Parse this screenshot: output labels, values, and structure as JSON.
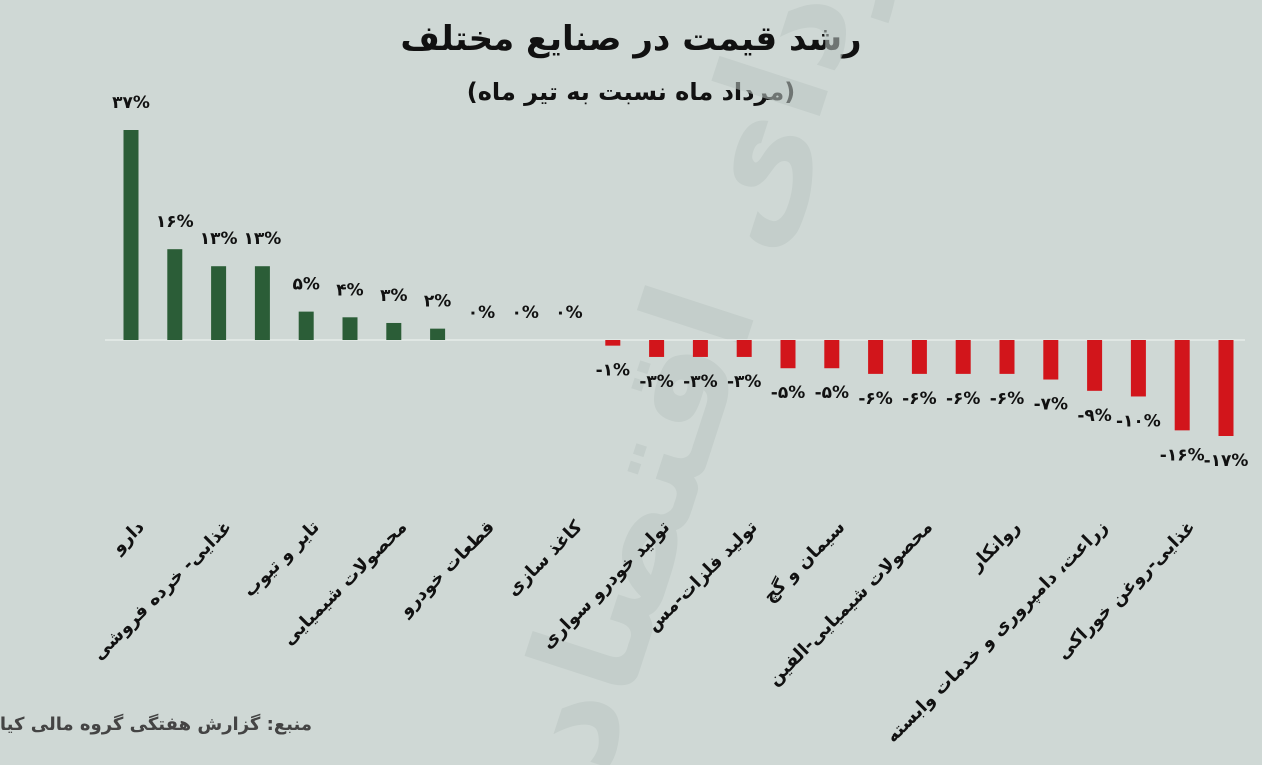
{
  "chart_data": {
    "type": "bar",
    "title": "رشد قیمت در صنایع مختلف",
    "subtitle": "(مرداد ماه نسبت به تیر ماه)",
    "source": "منبع: گزارش هفتگی گروه مالی کیان",
    "watermark": "فردای اقتصاد",
    "categories": [
      "دارو",
      null,
      "غذایی- خرده فروشی",
      null,
      "تایر و تیوب",
      null,
      "محصولات شیمیایی",
      null,
      "قطعات خودرو",
      null,
      "کاغذ سازی",
      null,
      "تولید خودرو سواری",
      null,
      "تولید فلزات-مس",
      null,
      "سیمان و گچ",
      null,
      "محصولات شیمیایی-الفین",
      null,
      "روانکار",
      null,
      "زراعت، دامپروری و خدمات وابسته",
      null,
      "غذایی-روغن خوراکی",
      null
    ],
    "values": [
      37,
      16,
      13,
      13,
      5,
      4,
      3,
      2,
      0,
      0,
      0,
      -1,
      -3,
      -3,
      -3,
      -5,
      -5,
      -6,
      -6,
      -6,
      -6,
      -7,
      -9,
      -10,
      -16,
      -17
    ],
    "value_labels": [
      "۳۷%",
      "۱۶%",
      "۱۳%",
      "۱۳%",
      "۵%",
      "۴%",
      "۳%",
      "۲%",
      "۰%",
      "۰%",
      "۰%",
      "-۱%",
      "-۳%",
      "-۳%",
      "-۳%",
      "-۵%",
      "-۵%",
      "-۶%",
      "-۶%",
      "-۶%",
      "-۶%",
      "-۷%",
      "-۹%",
      "-۱۰%",
      "-۱۶%",
      "-۱۷%"
    ],
    "colors": {
      "positive": "#2b5d37",
      "negative": "#d2151b"
    }
  }
}
